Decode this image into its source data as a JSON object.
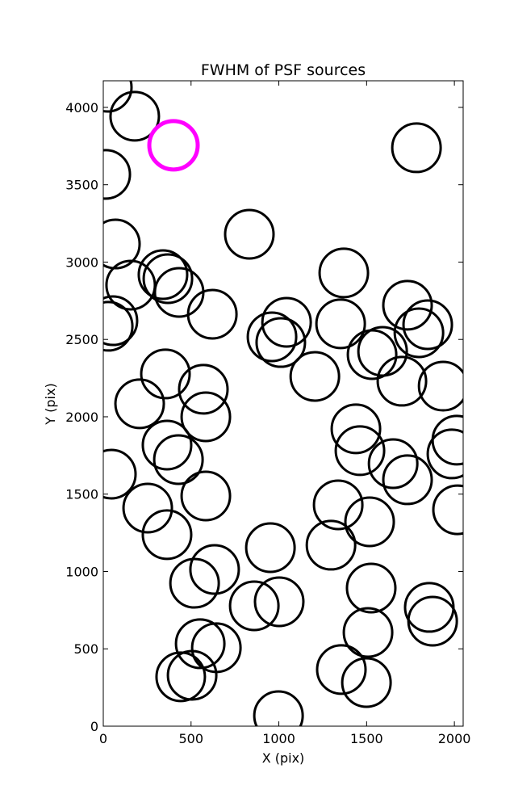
{
  "chart_data": {
    "type": "scatter",
    "title": "FWHM of PSF sources",
    "x_label": "X (pix)",
    "y_label": "Y (pix)",
    "xlim": [
      0,
      2050
    ],
    "ylim": [
      0,
      4172
    ],
    "xticks": [
      0,
      500,
      1000,
      1500,
      2000
    ],
    "yticks": [
      0,
      500,
      1000,
      1500,
      2000,
      2500,
      3000,
      3500,
      4000
    ],
    "series": [
      {
        "color": "#000000",
        "x": [
          23,
          179,
          14,
          1784,
          69,
          832,
          156,
          340,
          368,
          432,
          1370,
          55,
          28,
          621,
          1044,
          961,
          1011,
          1352,
          1733,
          1848,
          1798,
          1531,
          1591,
          1205,
          1701,
          1936,
          354,
          207,
          570,
          584,
          1439,
          1462,
          2014,
          1986,
          1651,
          1733,
          363,
          428,
          46,
          584,
          253,
          1338,
          1517,
          2018,
          363,
          952,
          1297,
          634,
          520,
          1526,
          860,
          1002,
          1857,
          1876,
          552,
          644,
          1508,
          441,
          506,
          1356,
          1499,
          998
        ],
        "values": [
          4130,
          3943,
          3567,
          3739,
          3117,
          3180,
          2851,
          2919,
          2893,
          2804,
          2930,
          2621,
          2585,
          2663,
          2611,
          2517,
          2480,
          2601,
          2721,
          2595,
          2543,
          2402,
          2423,
          2261,
          2230,
          2198,
          2277,
          2084,
          2178,
          2000,
          1922,
          1781,
          1849,
          1760,
          1697,
          1593,
          1817,
          1723,
          1629,
          1488,
          1410,
          1431,
          1321,
          1399,
          1238,
          1154,
          1170,
          1013,
          924,
          893,
          778,
          804,
          768,
          679,
          533,
          507,
          606,
          319,
          329,
          366,
          282,
          68
        ]
      },
      {
        "color": "#ff00ff",
        "x": [
          400
        ],
        "values": [
          3755
        ]
      }
    ]
  }
}
